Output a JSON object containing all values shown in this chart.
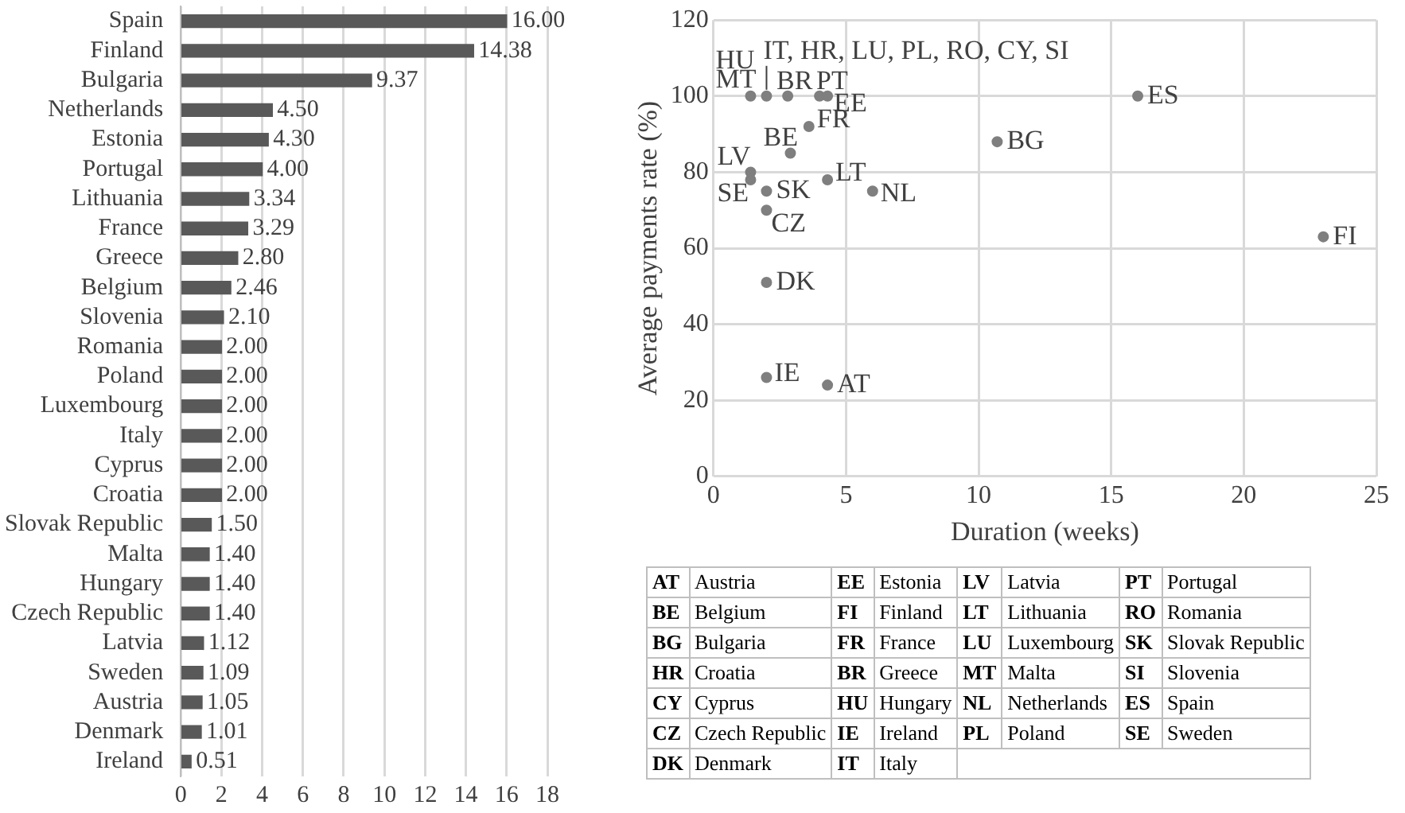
{
  "chart_data": [
    {
      "type": "bar",
      "orientation": "horizontal",
      "categories": [
        "Spain",
        "Finland",
        "Bulgaria",
        "Netherlands",
        "Estonia",
        "Portugal",
        "Lithuania",
        "France",
        "Greece",
        "Belgium",
        "Slovenia",
        "Romania",
        "Poland",
        "Luxembourg",
        "Italy",
        "Cyprus",
        "Croatia",
        "Slovak Republic",
        "Malta",
        "Hungary",
        "Czech Republic",
        "Latvia",
        "Sweden",
        "Austria",
        "Denmark",
        "Ireland"
      ],
      "values": [
        16.0,
        14.38,
        9.37,
        4.5,
        4.3,
        4.0,
        3.34,
        3.29,
        2.8,
        2.46,
        2.1,
        2.0,
        2.0,
        2.0,
        2.0,
        2.0,
        2.0,
        1.5,
        1.4,
        1.4,
        1.4,
        1.12,
        1.09,
        1.05,
        1.01,
        0.51
      ],
      "value_labels": [
        "16.00",
        "14.38",
        "9.37",
        "4.50",
        "4.30",
        "4.00",
        "3.34",
        "3.29",
        "2.80",
        "2.46",
        "2.10",
        "2.00",
        "2.00",
        "2.00",
        "2.00",
        "2.00",
        "2.00",
        "1.50",
        "1.40",
        "1.40",
        "1.40",
        "1.12",
        "1.09",
        "1.05",
        "1.01",
        "0.51"
      ],
      "color": "#595959",
      "xlim": [
        0,
        18
      ],
      "xticks": [
        0,
        2,
        4,
        6,
        8,
        10,
        12,
        14,
        16,
        18
      ],
      "grid": "x"
    },
    {
      "type": "scatter",
      "xlabel": "Duration (weeks)",
      "ylabel": "Average payments rate (%)",
      "x": [
        1.4,
        2,
        2.8,
        4,
        4.3,
        16,
        3.6,
        2.9,
        10.7,
        1.4,
        1.4,
        2,
        4.3,
        6,
        2,
        23,
        2,
        2,
        4.3
      ],
      "values": [
        100,
        100,
        100,
        100,
        100,
        100,
        92,
        85,
        88,
        80,
        78,
        75,
        78,
        75,
        70,
        63,
        51,
        26,
        24
      ],
      "color": "#7f7f7f",
      "marker": "circle",
      "xlim": [
        0,
        25
      ],
      "xticks": [
        0,
        5,
        10,
        15,
        20,
        25
      ],
      "ylim": [
        0,
        120
      ],
      "yticks": [
        0,
        20,
        40,
        60,
        80,
        100,
        120
      ],
      "grid": true,
      "annotations": [
        {
          "text": "HU",
          "x": 1.4,
          "y": 100
        },
        {
          "text": "MT",
          "x": 1.4,
          "y": 100
        },
        {
          "text": "IT, HR, LU, PL, RO, CY, SI",
          "x": 2,
          "y": 100
        },
        {
          "text": "BR",
          "x": 2.8,
          "y": 100
        },
        {
          "text": "PT",
          "x": 4,
          "y": 100
        },
        {
          "text": "EE",
          "x": 4.3,
          "y": 100
        },
        {
          "text": "ES",
          "x": 16,
          "y": 100
        },
        {
          "text": "FR",
          "x": 3.6,
          "y": 92
        },
        {
          "text": "BE",
          "x": 2.9,
          "y": 85
        },
        {
          "text": "BG",
          "x": 10.7,
          "y": 88
        },
        {
          "text": "LV",
          "x": 1.4,
          "y": 80
        },
        {
          "text": "SE",
          "x": 1.4,
          "y": 78
        },
        {
          "text": "SK",
          "x": 2,
          "y": 75
        },
        {
          "text": "LT",
          "x": 4.3,
          "y": 78
        },
        {
          "text": "NL",
          "x": 6,
          "y": 75
        },
        {
          "text": "CZ",
          "x": 2,
          "y": 70
        },
        {
          "text": "FI",
          "x": 23,
          "y": 63
        },
        {
          "text": "DK",
          "x": 2,
          "y": 51
        },
        {
          "text": "IE",
          "x": 2,
          "y": 26
        },
        {
          "text": "AT",
          "x": 4.3,
          "y": 24
        }
      ]
    },
    {
      "type": "other",
      "annotations": [
        "AT",
        "Austria",
        "EE",
        "Estonia",
        "LV",
        "Latvia",
        "PT",
        "Portugal",
        "BE",
        "Belgium",
        "FI",
        "Finland",
        "LT",
        "Lithuania",
        "RO",
        "Romania",
        "BG",
        "Bulgaria",
        "FR",
        "France",
        "LU",
        "Luxembourg",
        "SK",
        "Slovak Republic",
        "HR",
        "Croatia",
        "BR",
        "Greece",
        "MT",
        "Malta",
        "SI",
        "Slovenia",
        "CY",
        "Cyprus",
        "HU",
        "Hungary",
        "NL",
        "Netherlands",
        "ES",
        "Spain",
        "CZ",
        "Czech Republic",
        "IE",
        "Ireland",
        "PL",
        "Poland",
        "SE",
        "Sweden",
        "DK",
        "Denmark",
        "IT",
        "Italy"
      ]
    }
  ]
}
